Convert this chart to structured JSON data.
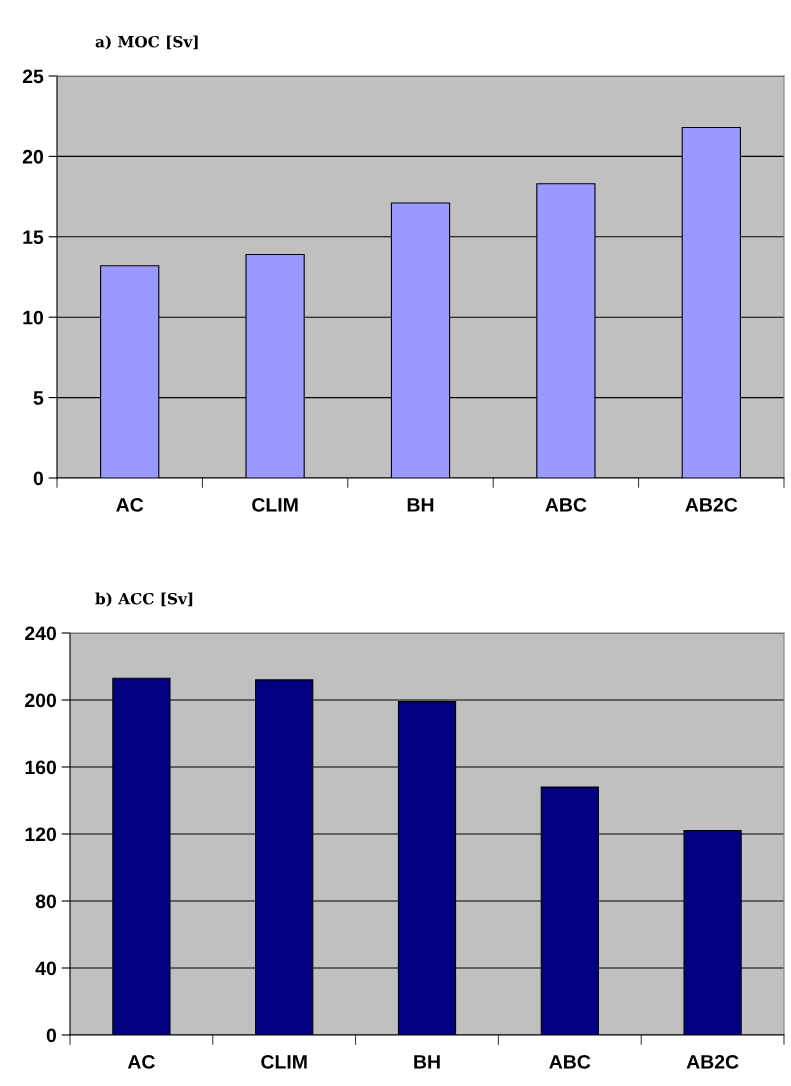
{
  "chart_data": [
    {
      "type": "bar",
      "title": "a) MOC [Sv]",
      "categories": [
        "AC",
        "CLIM",
        "BH",
        "ABC",
        "AB2C"
      ],
      "values": [
        13.2,
        13.9,
        17.1,
        18.3,
        21.8
      ],
      "color": "#9999ff",
      "ylim": [
        0,
        25
      ],
      "yticks": [
        0,
        5,
        10,
        15,
        20,
        25
      ],
      "grid": "y",
      "legend": false
    },
    {
      "type": "bar",
      "title": "b) ACC [Sv]",
      "categories": [
        "AC",
        "CLIM",
        "BH",
        "ABC",
        "AB2C"
      ],
      "values": [
        213,
        212,
        199,
        148,
        122
      ],
      "color": "#000080",
      "ylim": [
        0,
        240
      ],
      "yticks": [
        0,
        40,
        80,
        120,
        160,
        200,
        240
      ],
      "grid": "y",
      "legend": false
    }
  ]
}
